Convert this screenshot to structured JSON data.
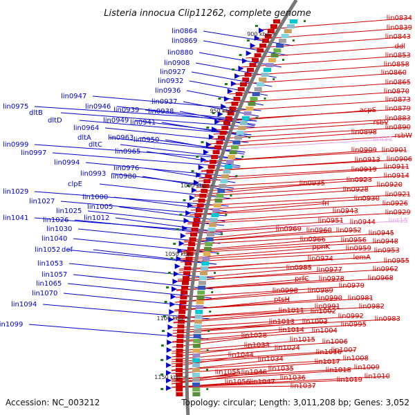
{
  "title": "Listeria innocua Clip11262, complete genome",
  "accession": "Accession: NC_003212",
  "summary": "Topology: circular; Length: 3,011,208 bp; Genes: 3,052",
  "scale_labels": [
    "900 kbp",
    "950 kbp",
    "1000 kbp",
    "1050 kbp",
    "1100 kbp",
    "1150 kbp"
  ],
  "colors": {
    "forward": "#0000cc",
    "reverse": "#cc0000",
    "rna": "#e8a3e8",
    "backbone": "#777777",
    "gc": "#1a7a1a"
  },
  "forward_genes": [
    "lin0864",
    "lin0869",
    "lin0880",
    "lin0908",
    "lin0927",
    "lin0932",
    "lin0936",
    "lin0937",
    "lin0938",
    "lin0947",
    "lin0946",
    "lin0939",
    "lin0975",
    "dltB",
    "dltD",
    "lin0949",
    "lin0941",
    "lin0964",
    "dltA",
    "dltC",
    "lin0963",
    "lin0950",
    "lin0999",
    "lin0997",
    "lin0965",
    "lin0994",
    "lin0976",
    "lin0993",
    "lin0980",
    "clpE",
    "lin1000",
    "lin1029",
    "lin1027",
    "lin1005",
    "lin1025",
    "lin1012",
    "lin1041",
    "lin1026",
    "lin1030",
    "lin1040",
    "def",
    "lin1052",
    "lin1053",
    "lin1057",
    "lin1065",
    "lin1070",
    "lin1094",
    "lin1099"
  ],
  "reverse_genes": [
    "lin0834",
    "lin0839",
    "lin0843",
    "ddl",
    "lin0853",
    "lin0858",
    "lin0860",
    "lin0865",
    "lin0870",
    "lin0873",
    "acpS",
    "lin0879",
    "lin0883",
    "rsbV",
    "lin0890",
    "lin0898",
    "rsbW",
    "lin0909",
    "lin0901",
    "lin0913",
    "lin0906",
    "lin0919",
    "lin0911",
    "lin0914",
    "lin0923",
    "lin0935",
    "lin0920",
    "lin0928",
    "lin0921",
    "lin0930",
    "lin0926",
    "fri",
    "lin0943",
    "lin0929",
    "lin0951",
    "lin0944",
    "lin0945",
    "lin0969",
    "lin0960",
    "lin0952",
    "lin0966",
    "lin0956",
    "lin0948",
    "ppnK",
    "lin0959",
    "lin0953",
    "lin0974",
    "lemA",
    "lin0955",
    "lin0985",
    "lin0977",
    "lin0962",
    "prfC",
    "lin0978",
    "lin0968",
    "lin0998",
    "lin0989",
    "lin0979",
    "lin0990",
    "lin0981",
    "ptsH",
    "lin0991",
    "lin0982",
    "lin1011",
    "lin1002",
    "lin0992",
    "lin0983",
    "lin1013",
    "lin1003",
    "lin0995",
    "lin1014",
    "lin1004",
    "lin1028",
    "lin1015",
    "lin1006",
    "lin1033",
    "lin1024",
    "lin1016",
    "lin1007",
    "lin1044",
    "lin1034",
    "lin1017",
    "lin1008",
    "lin1035",
    "lin1018",
    "lin1009",
    "lin1055",
    "lin1046",
    "lin1036",
    "lin1019",
    "lin1010",
    "lin1056",
    "lin1047",
    "lin1037"
  ],
  "rna_genes": [
    "lint12",
    "lint15"
  ]
}
